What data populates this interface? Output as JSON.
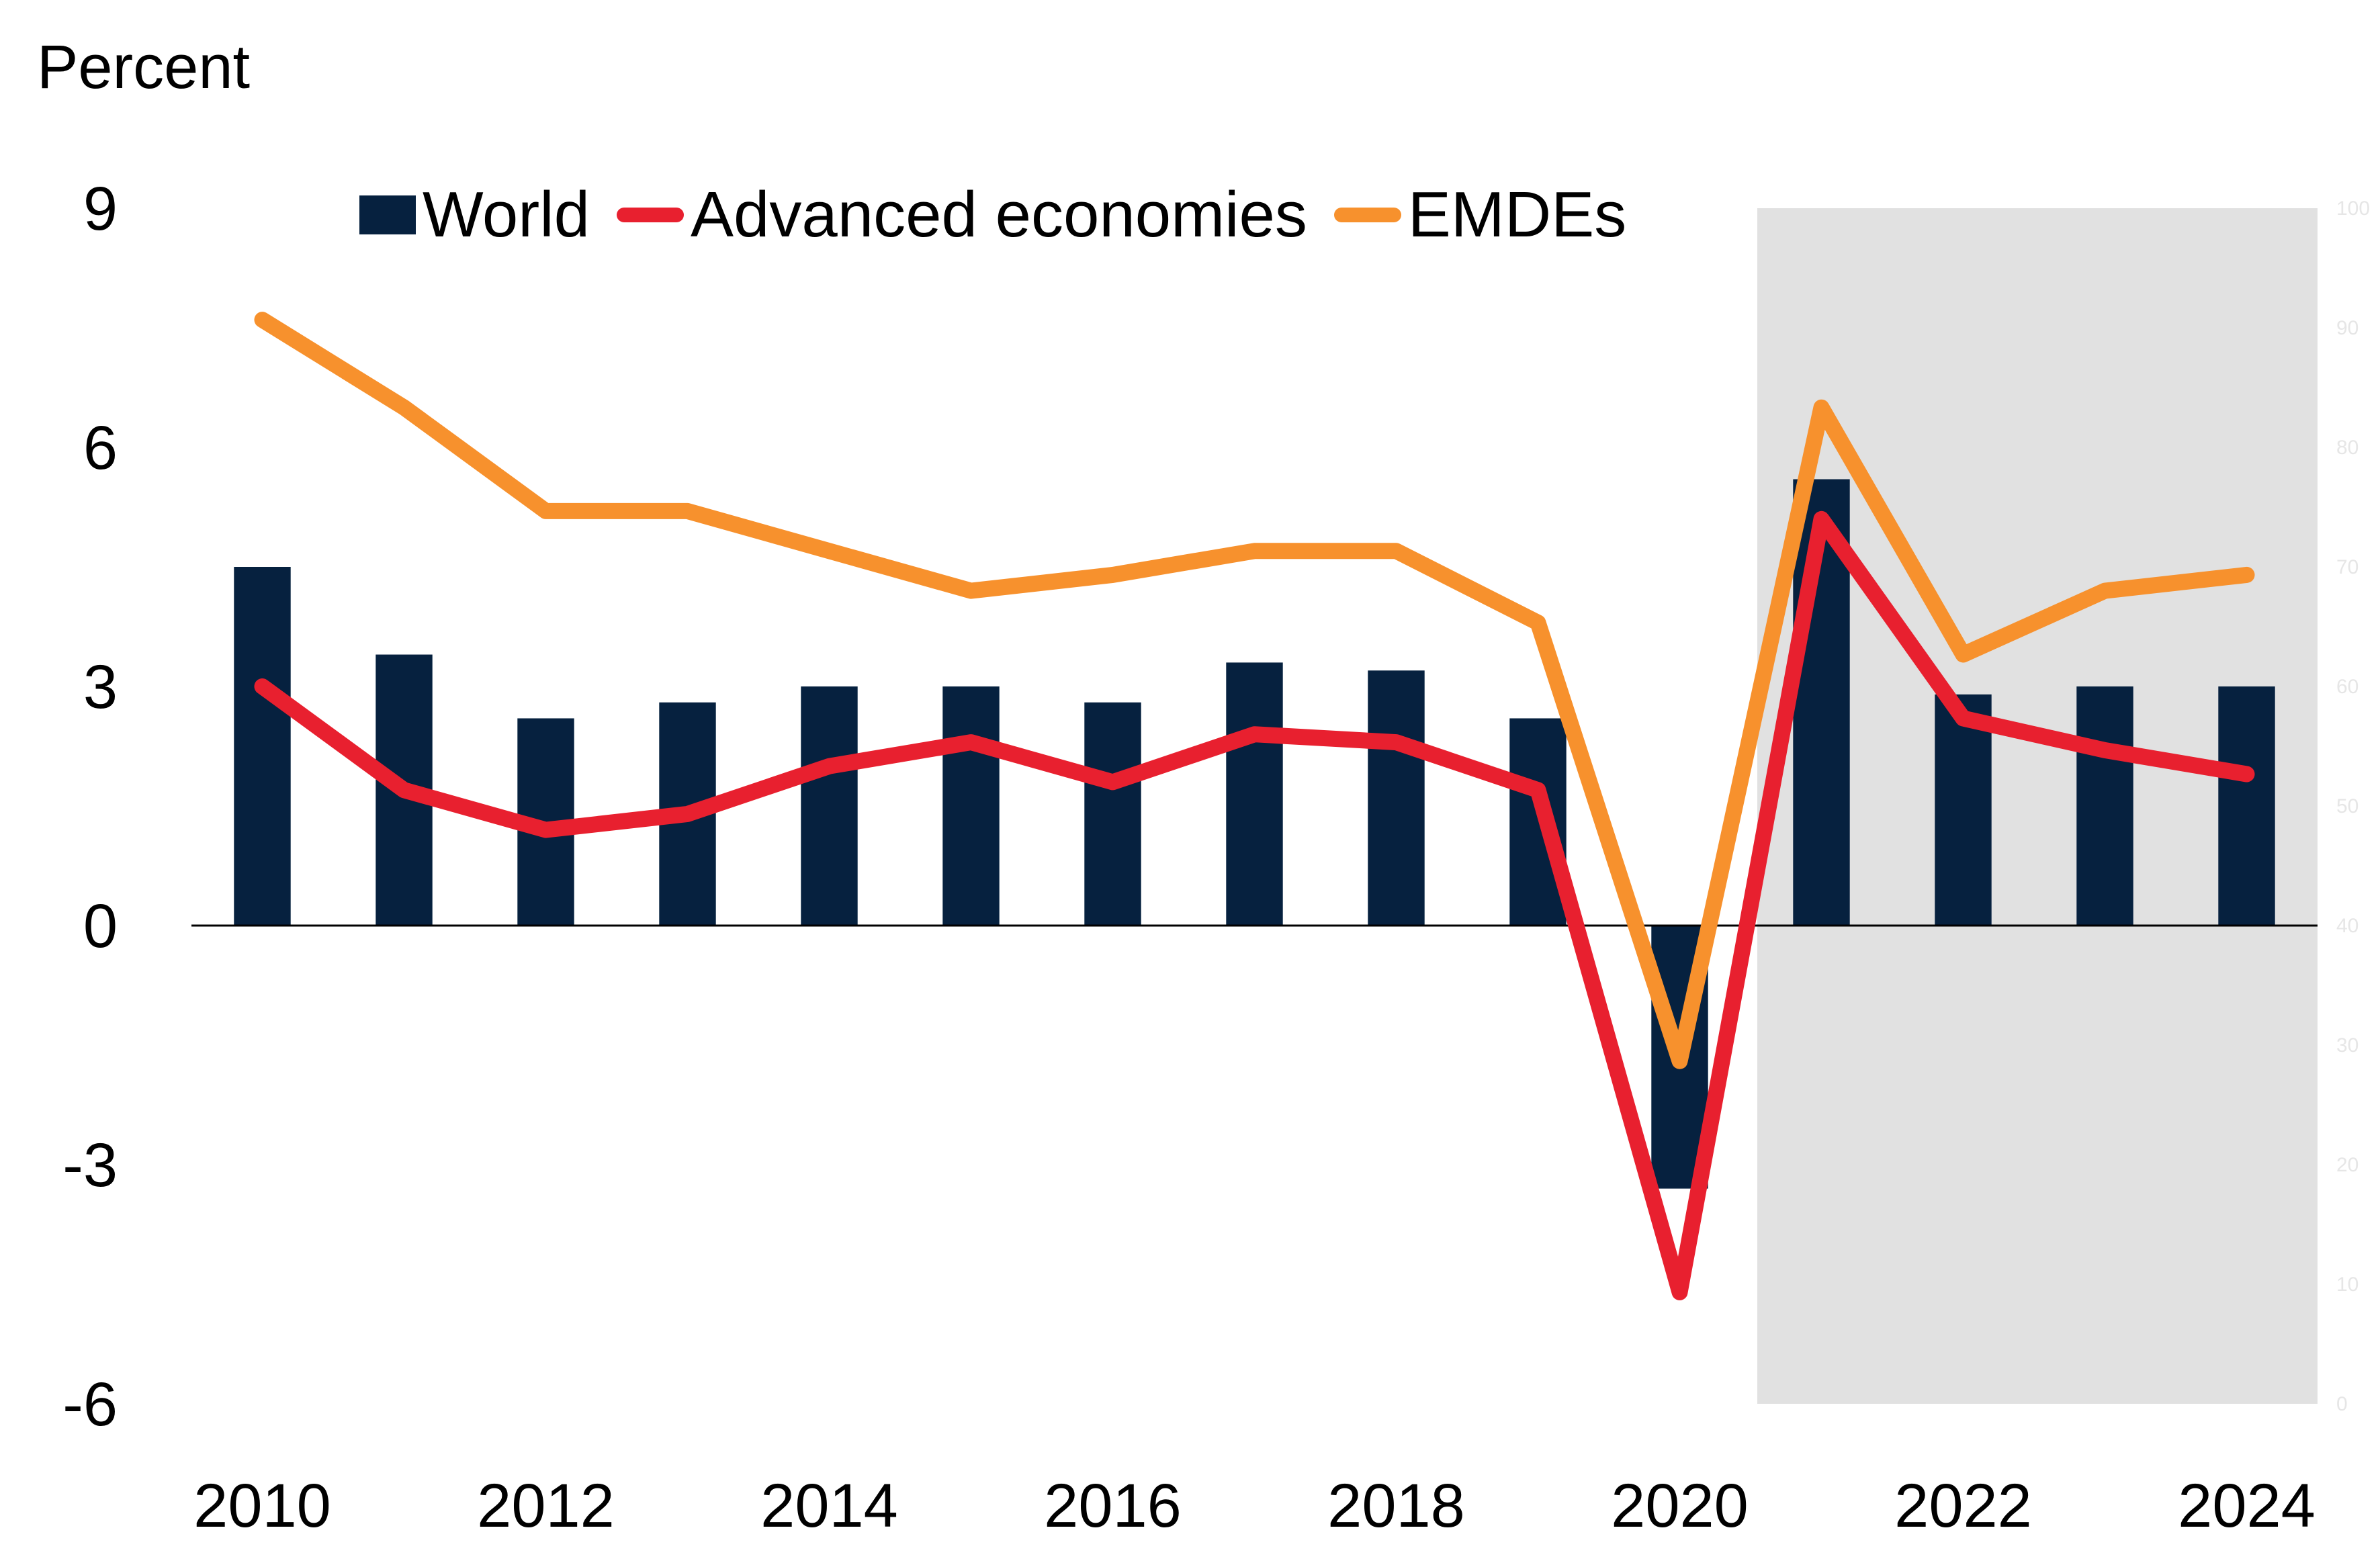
{
  "unit_label": "Percent",
  "legend": [
    {
      "label": "World",
      "kind": "bar",
      "color": "#06213F"
    },
    {
      "label": "Advanced economies",
      "kind": "line",
      "color": "#E8202F"
    },
    {
      "label": "EMDEs",
      "kind": "line",
      "color": "#F7912D"
    }
  ],
  "colors": {
    "forecast_shade": "#E1E1E1",
    "zero_line": "#000000",
    "right_axis_text": "#E6E6E6"
  },
  "chart_data": {
    "type": "bar",
    "x": [
      "2010",
      "2011",
      "2012",
      "2013",
      "2014",
      "2015",
      "2016",
      "2017",
      "2018",
      "2019",
      "2020",
      "2021",
      "2022",
      "2023",
      "2024"
    ],
    "x_tick_labels": [
      "2010",
      "2012",
      "2014",
      "2016",
      "2018",
      "2020",
      "2022",
      "2024"
    ],
    "ylabel": "Percent",
    "ylim": [
      -6,
      9
    ],
    "y_ticks": [
      "9",
      "6",
      "3",
      "0",
      "-3",
      "-6"
    ],
    "y2_ticks": [
      "100",
      "90",
      "80",
      "70",
      "60",
      "50",
      "40",
      "30",
      "20",
      "10",
      "0"
    ],
    "forecast_shaded_from": "2021",
    "series": [
      {
        "name": "World",
        "type": "bar",
        "color": "#06213F",
        "values": [
          4.5,
          3.4,
          2.6,
          2.8,
          3.0,
          3.0,
          2.8,
          3.3,
          3.2,
          2.6,
          -3.3,
          5.6,
          2.9,
          3.0,
          3.0
        ]
      },
      {
        "name": "Advanced economies",
        "type": "line",
        "color": "#E8202F",
        "values": [
          3.0,
          1.7,
          1.2,
          1.4,
          2.0,
          2.3,
          1.8,
          2.4,
          2.3,
          1.7,
          -4.6,
          5.1,
          2.6,
          2.2,
          1.9
        ]
      },
      {
        "name": "EMDEs",
        "type": "line",
        "color": "#F7912D",
        "values": [
          7.6,
          6.5,
          5.2,
          5.2,
          4.7,
          4.2,
          4.4,
          4.7,
          4.7,
          3.8,
          -1.7,
          6.5,
          3.4,
          4.2,
          4.4
        ]
      }
    ]
  }
}
